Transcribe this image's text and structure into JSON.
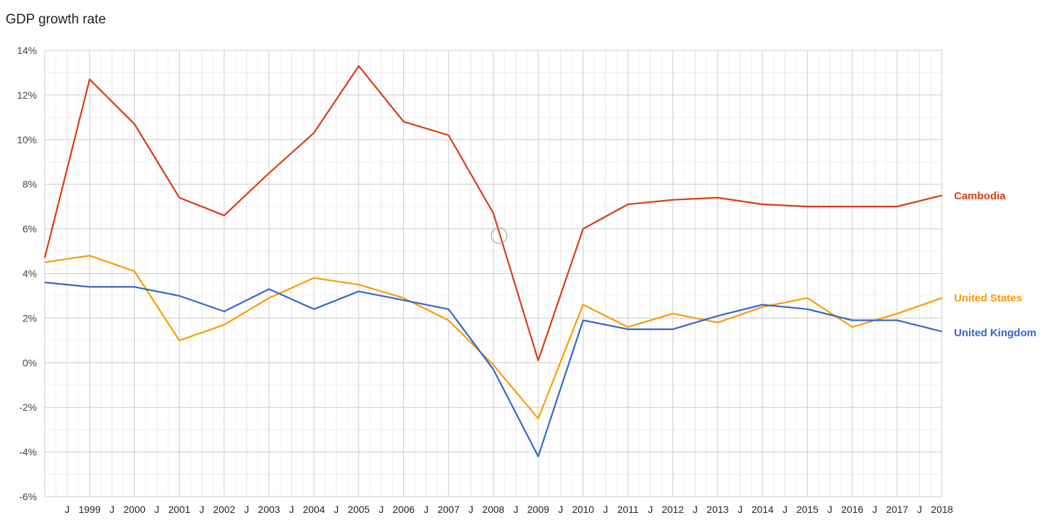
{
  "chart_data": {
    "type": "line",
    "title": "GDP growth rate",
    "xlabel": "",
    "ylabel": "",
    "x": [
      1998,
      1999,
      2000,
      2001,
      2002,
      2003,
      2004,
      2005,
      2006,
      2007,
      2008,
      2009,
      2010,
      2011,
      2012,
      2013,
      2014,
      2015,
      2016,
      2017,
      2018
    ],
    "x_tick_labels": [
      "J",
      "1999",
      "J",
      "2000",
      "J",
      "2001",
      "J",
      "2002",
      "J",
      "2003",
      "J",
      "2004",
      "J",
      "2005",
      "J",
      "2006",
      "J",
      "2007",
      "J",
      "2008",
      "J",
      "2009",
      "J",
      "2010",
      "J",
      "2011",
      "J",
      "2012",
      "J",
      "2013",
      "J",
      "2014",
      "J",
      "2015",
      "J",
      "2016",
      "J",
      "2017",
      "J",
      "2018"
    ],
    "y_ticks": [
      14,
      12,
      10,
      8,
      6,
      4,
      2,
      0,
      -2,
      -4,
      -6
    ],
    "y_tick_labels": [
      "14%",
      "12%",
      "10%",
      "8%",
      "6%",
      "4%",
      "2%",
      "0%",
      "-2%",
      "-4%",
      "-6%"
    ],
    "ylim": [
      -6,
      14
    ],
    "grid": true,
    "legend": "end-of-line labels on right",
    "series": [
      {
        "name": "Cambodia",
        "color": "#dc3912",
        "values": [
          4.7,
          12.7,
          10.7,
          7.4,
          6.6,
          8.5,
          10.3,
          13.3,
          10.8,
          10.2,
          6.7,
          0.1,
          6.0,
          7.1,
          7.3,
          7.4,
          7.1,
          7.0,
          7.0,
          7.0,
          7.5
        ]
      },
      {
        "name": "United States",
        "color": "#ff9900",
        "values": [
          4.5,
          4.8,
          4.1,
          1.0,
          1.7,
          2.9,
          3.8,
          3.5,
          2.9,
          1.9,
          -0.1,
          -2.5,
          2.6,
          1.6,
          2.2,
          1.8,
          2.5,
          2.9,
          1.6,
          2.2,
          2.9
        ]
      },
      {
        "name": "United Kingdom",
        "color": "#3366cc",
        "values": [
          3.6,
          3.4,
          3.4,
          3.0,
          2.3,
          3.3,
          2.4,
          3.2,
          2.8,
          2.4,
          -0.3,
          -4.2,
          1.9,
          1.5,
          1.5,
          2.1,
          2.6,
          2.4,
          1.9,
          1.9,
          1.4
        ]
      }
    ]
  }
}
